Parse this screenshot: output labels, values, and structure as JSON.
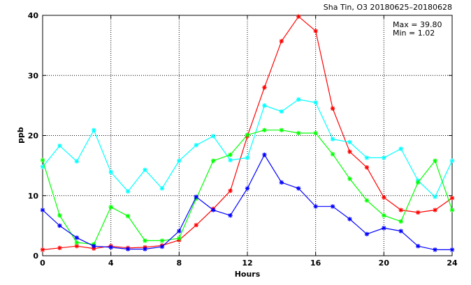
{
  "chart_data": {
    "type": "line",
    "title": "Sha Tin, O3 20180625–20180628",
    "xlabel": "Hours",
    "ylabel": "ppb",
    "xlim": [
      0,
      24
    ],
    "ylim": [
      0,
      40
    ],
    "xticks": [
      "0",
      "4",
      "8",
      "12",
      "16",
      "20",
      "24"
    ],
    "yticks": [
      "0",
      "10",
      "20",
      "30",
      "40"
    ],
    "grid": true,
    "stats": {
      "max_label": "Max = 39.80",
      "min_label": "Min =  1.02"
    },
    "series": [
      {
        "color": "#ff0000",
        "x": [
          0,
          1,
          2,
          3,
          4,
          5,
          6,
          7,
          8,
          9,
          10,
          11,
          12,
          13,
          14,
          15,
          16,
          17,
          18,
          19,
          20,
          21,
          22,
          23,
          24
        ],
        "y": [
          1.0,
          1.3,
          1.6,
          1.2,
          1.6,
          1.3,
          1.4,
          1.7,
          2.6,
          5.1,
          7.8,
          10.8,
          19.9,
          28.0,
          35.7,
          39.8,
          37.4,
          24.5,
          17.3,
          14.7,
          9.7,
          7.6,
          7.2,
          7.6,
          9.6
        ]
      },
      {
        "color": "#00ffff",
        "x": [
          0,
          1,
          2,
          3,
          4,
          5,
          6,
          7,
          8,
          9,
          10,
          11,
          12,
          13,
          14,
          15,
          16,
          17,
          18,
          19,
          20,
          21,
          22,
          23,
          24
        ],
        "y": [
          14.8,
          18.3,
          15.7,
          20.9,
          13.9,
          10.7,
          14.3,
          11.2,
          15.8,
          18.4,
          19.9,
          15.9,
          16.3,
          25.0,
          24.0,
          26.0,
          25.5,
          19.4,
          18.9,
          16.3,
          16.3,
          17.8,
          12.5,
          9.8,
          15.8
        ]
      },
      {
        "color": "#00ff00",
        "x": [
          0,
          1,
          2,
          3,
          4,
          5,
          6,
          7,
          8,
          9,
          10,
          11,
          12,
          13,
          14,
          15,
          16,
          17,
          18,
          19,
          20,
          21,
          22,
          23,
          24
        ],
        "y": [
          15.9,
          6.7,
          2.2,
          1.9,
          8.1,
          6.6,
          2.5,
          2.5,
          2.9,
          9.5,
          15.8,
          16.8,
          20.1,
          20.9,
          20.9,
          20.4,
          20.4,
          16.9,
          12.8,
          9.2,
          6.7,
          5.7,
          12.2,
          15.8,
          7.6
        ]
      },
      {
        "color": "#0000ff",
        "x": [
          0,
          1,
          2,
          3,
          4,
          5,
          6,
          7,
          8,
          9,
          10,
          11,
          12,
          13,
          14,
          15,
          16,
          17,
          18,
          19,
          20,
          21,
          22,
          23,
          24
        ],
        "y": [
          7.6,
          5.0,
          3.0,
          1.6,
          1.4,
          1.1,
          1.1,
          1.5,
          4.1,
          9.8,
          7.6,
          6.7,
          11.2,
          16.8,
          12.2,
          11.2,
          8.2,
          8.2,
          6.1,
          3.6,
          4.6,
          4.1,
          1.6,
          1.0,
          1.0
        ]
      }
    ]
  }
}
